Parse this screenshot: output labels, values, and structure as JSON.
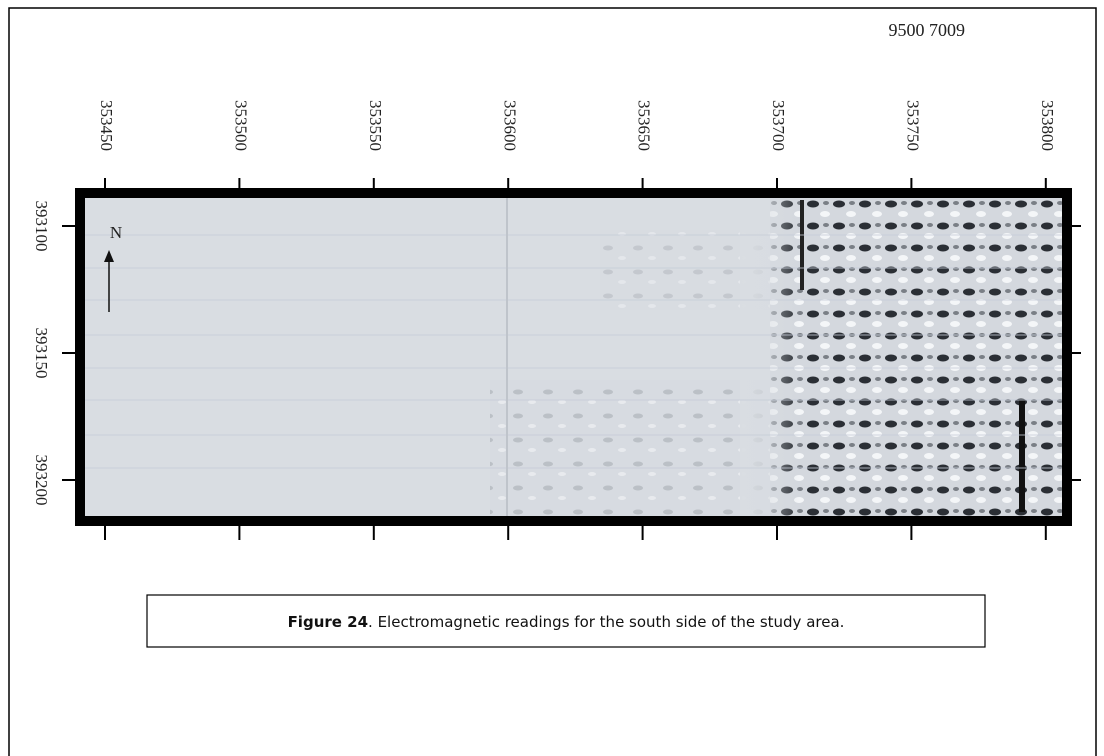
{
  "header": {
    "code": "9500 7009"
  },
  "map": {
    "x_ticks": [
      353450,
      353500,
      353550,
      353600,
      353650,
      353700,
      353750,
      353800
    ],
    "y_ticks": [
      393100,
      393150,
      393200
    ],
    "north_label": "N"
  },
  "caption": {
    "label": "Figure 24",
    "text": ". Electromagnetic readings for the south side of the study area."
  }
}
